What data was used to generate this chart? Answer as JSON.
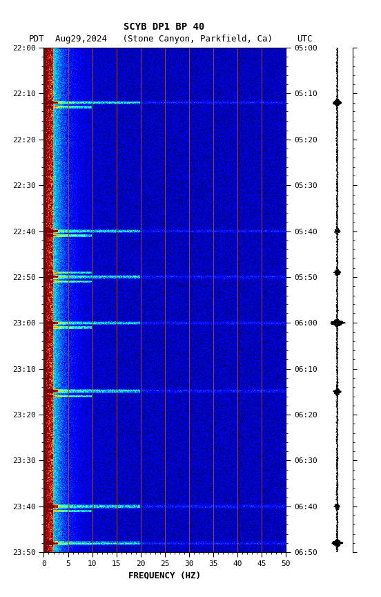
{
  "title_line1": "SCYB DP1 BP 40",
  "title_line2_left": "PDT",
  "title_line2_mid": "Aug29,2024   (Stone Canyon, Parkfield, Ca)",
  "title_line2_right": "UTC",
  "xlabel": "FREQUENCY (HZ)",
  "freq_min": 0,
  "freq_max": 50,
  "pdt_ticks": [
    "22:00",
    "22:10",
    "22:20",
    "22:30",
    "22:40",
    "22:50",
    "23:00",
    "23:10",
    "23:20",
    "23:30",
    "23:40",
    "23:50"
  ],
  "utc_ticks": [
    "05:00",
    "05:10",
    "05:20",
    "05:30",
    "05:40",
    "05:50",
    "06:00",
    "06:10",
    "06:20",
    "06:30",
    "06:40",
    "06:50"
  ],
  "freq_ticks": [
    0,
    5,
    10,
    15,
    20,
    25,
    30,
    35,
    40,
    45,
    50
  ],
  "vertical_lines_freq": [
    5,
    10,
    15,
    20,
    25,
    30,
    35,
    40,
    45
  ],
  "vertical_line_color": "#b05000",
  "fig_bg": "#ffffff",
  "colormap": "jet",
  "noise_seed": 42,
  "event_minutes": [
    12,
    13,
    40,
    41,
    49,
    50,
    51,
    60,
    61,
    75,
    76,
    100,
    101,
    108
  ],
  "event_minutes_strong": [
    12,
    40,
    50,
    60,
    75,
    100,
    108
  ],
  "n_time": 660,
  "n_freq": 500
}
